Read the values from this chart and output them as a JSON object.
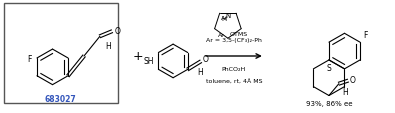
{
  "background_color": "#ffffff",
  "figure_width": 3.95,
  "figure_height": 1.14,
  "dpi": 100,
  "reagent_line1": "Ar = 3,5-(CF₃)₂-Ph",
  "reagent_line2": "PhCO₂H",
  "reagent_line3": "toluene, rt, 4Å MS",
  "yield_text": "93%, 86% ee",
  "compound_id": "683027",
  "plus_sign": "+"
}
